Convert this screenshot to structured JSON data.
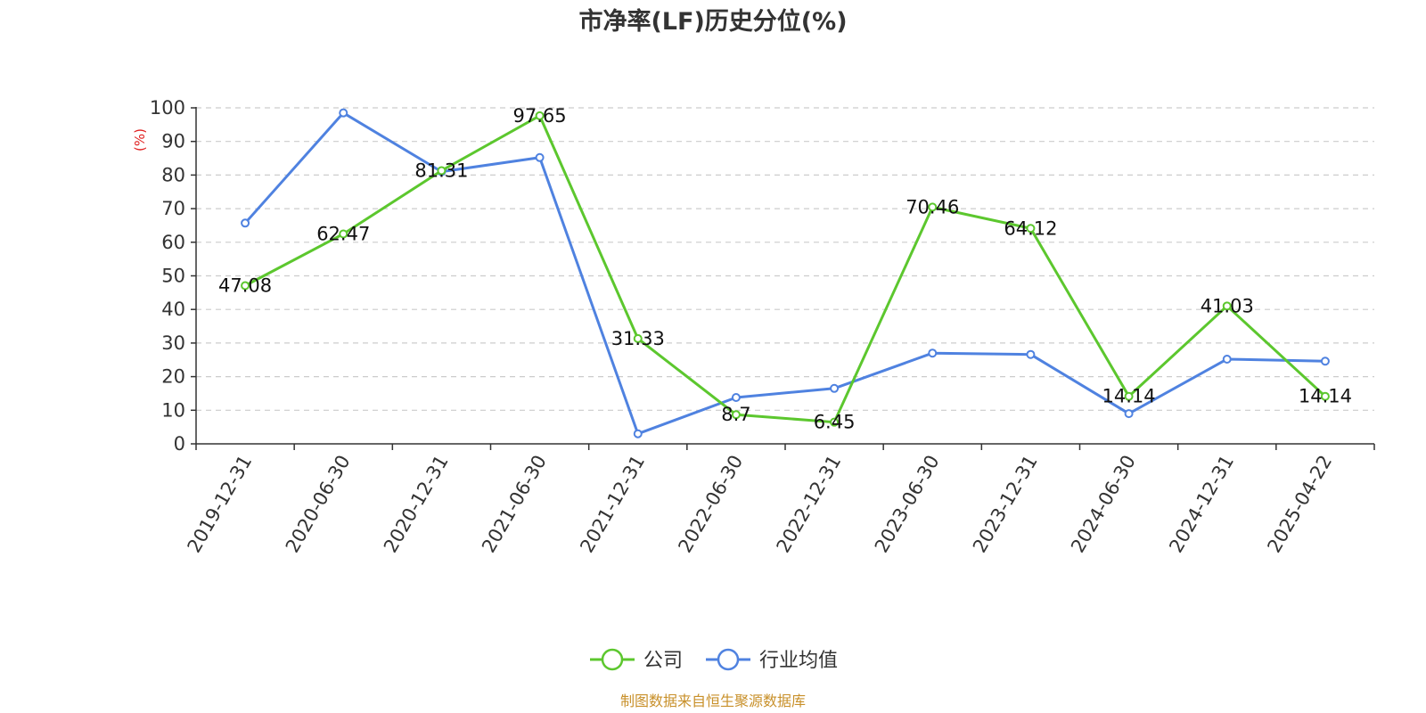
{
  "chart_data": {
    "type": "line",
    "title": "市净率(LF)历史分位(%)",
    "ylabel": "(%)",
    "ylim": [
      0,
      100
    ],
    "yticks": [
      0,
      10,
      20,
      30,
      40,
      50,
      60,
      70,
      80,
      90,
      100
    ],
    "categories": [
      "2019-12-31",
      "2020-06-30",
      "2020-12-31",
      "2021-06-30",
      "2021-12-31",
      "2022-06-30",
      "2022-12-31",
      "2023-06-30",
      "2023-12-31",
      "2024-06-30",
      "2024-12-31",
      "2025-04-22"
    ],
    "series": [
      {
        "name": "公司",
        "color": "#5cc72e",
        "values": [
          47.08,
          62.47,
          81.31,
          97.65,
          31.33,
          8.7,
          6.45,
          70.46,
          64.12,
          14.14,
          41.03,
          14.14
        ],
        "labels": [
          "47.08",
          "62.47",
          "81.31",
          "97.65",
          "31.33",
          "8.7",
          "6.45",
          "70.46",
          "64.12",
          "14.14",
          "41.03",
          "14.14"
        ]
      },
      {
        "name": "行业均值",
        "color": "#4f82e0",
        "values": [
          65.7,
          98.5,
          81.0,
          85.2,
          3.0,
          13.8,
          16.5,
          27.0,
          26.6,
          9.0,
          25.2,
          24.6
        ]
      }
    ],
    "grid": true,
    "grid_style": "dashed-horizontal",
    "legend_position": "bottom-center",
    "source": "制图数据来自恒生聚源数据库",
    "source_color": "#c8902a",
    "ylabel_color": "#e02020"
  }
}
